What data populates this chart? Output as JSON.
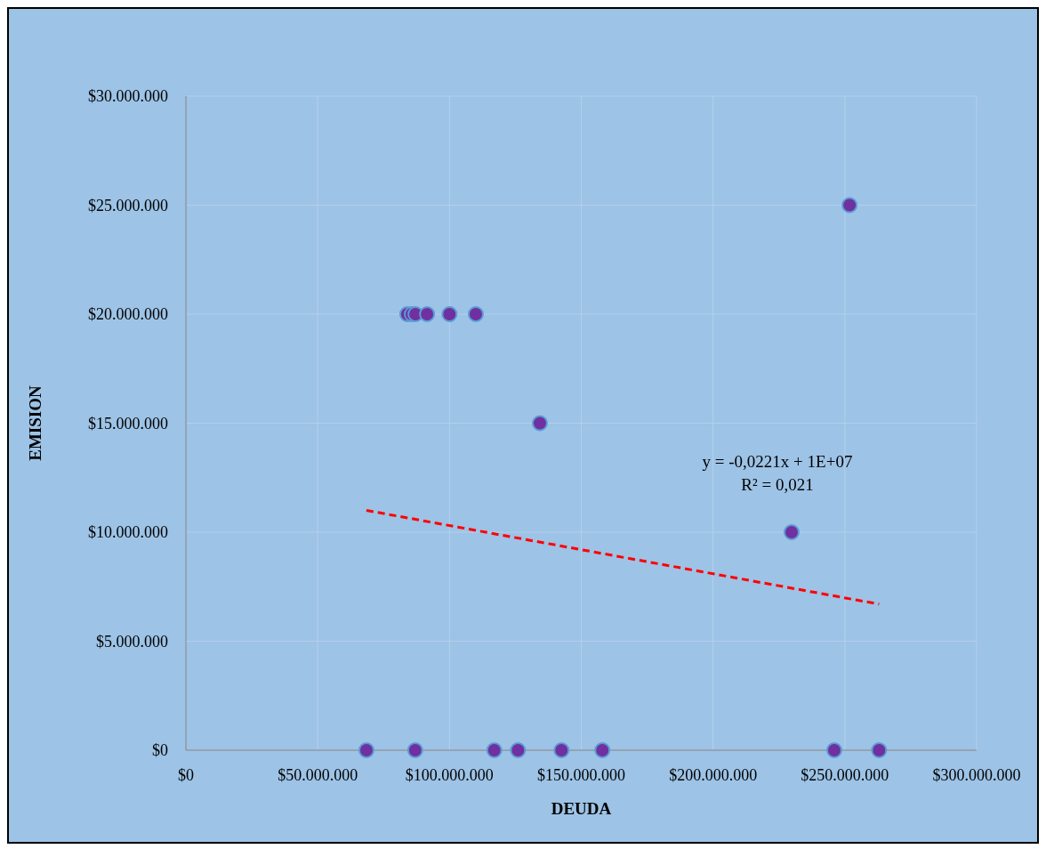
{
  "chart_data": {
    "type": "scatter",
    "xlabel": "DEUDA",
    "ylabel": "EMISION",
    "xlim": [
      0,
      300000000
    ],
    "ylim": [
      0,
      30000000
    ],
    "xticks": [
      {
        "value": 0,
        "label": "$0"
      },
      {
        "value": 50000000,
        "label": "$50.000.000"
      },
      {
        "value": 100000000,
        "label": "$100.000.000"
      },
      {
        "value": 150000000,
        "label": "$150.000.000"
      },
      {
        "value": 200000000,
        "label": "$200.000.000"
      },
      {
        "value": 250000000,
        "label": "$250.000.000"
      },
      {
        "value": 300000000,
        "label": "$300.000.000"
      }
    ],
    "yticks": [
      {
        "value": 0,
        "label": "$0"
      },
      {
        "value": 5000000,
        "label": "$5.000.000"
      },
      {
        "value": 10000000,
        "label": "$10.000.000"
      },
      {
        "value": 15000000,
        "label": "$15.000.000"
      },
      {
        "value": 20000000,
        "label": "$20.000.000"
      },
      {
        "value": 25000000,
        "label": "$25.000.000"
      },
      {
        "value": 30000000,
        "label": "$30.000.000"
      }
    ],
    "grid": true,
    "marker": "circle",
    "series": [
      {
        "color": "#7030a0",
        "x": [
          68500000,
          87000000,
          117000000,
          126000000,
          142500000,
          158000000,
          246000000,
          263000000,
          84000000,
          85700000,
          87100000,
          91500000,
          100000000,
          110000000,
          134300000,
          229800000,
          251800000
        ],
        "values": [
          0,
          0,
          0,
          0,
          0,
          0,
          0,
          0,
          20000000,
          20000000,
          20000000,
          20000000,
          20000000,
          20000000,
          15000000,
          10000000,
          25000000
        ]
      },
      {
        "type": "line",
        "color": "#ff0000",
        "line_style": "dashed",
        "marker": "none",
        "x": [
          68500000,
          263000000
        ],
        "values": [
          11000000,
          6700000
        ]
      }
    ],
    "annotations": [
      "y = -0,0221x + 1E+07",
      "R² = 0,021"
    ]
  }
}
